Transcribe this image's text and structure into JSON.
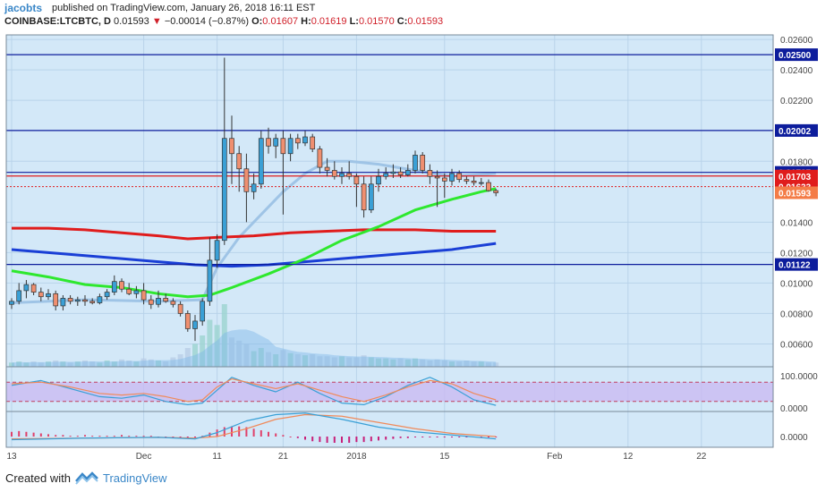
{
  "header": {
    "author": "jacobts",
    "published": "published on TradingView.com, January 26, 2018 16:11 EST",
    "symbol": "COINBASE:LTCBTC, D",
    "last": "0.01593",
    "change_arrow": "▼",
    "change": "−0.00014 (−0.87%)",
    "o_label": "O:",
    "o": "0.01607",
    "h_label": "H:",
    "h": "0.01619",
    "l_label": "L:",
    "l": "0.01570",
    "c_label": "C:",
    "c": "0.01593"
  },
  "footer": {
    "created": "Created with",
    "brand": "TradingView",
    "logo_icon": "tradingview-logo-icon"
  },
  "colors": {
    "panel_bg": "#d3e8f8",
    "grid": "#b9d3ea",
    "up": "#3aa0d6",
    "down": "#ef8f70",
    "ma_red": "#e01c1c",
    "ma_blue": "#1a3fd6",
    "ma_green": "#2ee82e",
    "bb": "#9fc4e6",
    "rsi_fill": "#c9b8f2"
  },
  "chart_data": {
    "type": "candlestick",
    "x_ticks": [
      "13",
      "Dec",
      "11",
      "21",
      "2018",
      "15",
      "Feb",
      "12",
      "22"
    ],
    "x_tick_idx": [
      0,
      18,
      28,
      37,
      47,
      59,
      74,
      84,
      94
    ],
    "y_ticks": [
      "0.02600",
      "0.02400",
      "0.02200",
      "0.01800",
      "0.01400",
      "0.01200",
      "0.01000",
      "0.00800",
      "0.00600"
    ],
    "y_range": [
      0.0045,
      0.0263
    ],
    "horizontal_lines": [
      {
        "value": 0.025,
        "label": "0.02500",
        "color": "#0d1d9c",
        "style": "solid"
      },
      {
        "value": 0.02002,
        "label": "0.02002",
        "color": "#0d1d9c",
        "style": "solid"
      },
      {
        "value": 0.01727,
        "label": "0.01727",
        "color": "#0d1d9c",
        "style": "solid"
      },
      {
        "value": 0.01703,
        "label": "0.01703",
        "color": "#e01c1c",
        "style": "solid"
      },
      {
        "value": 0.01633,
        "label": "0.01633",
        "color": "#e01c1c",
        "style": "dotted"
      },
      {
        "value": 0.01593,
        "label": "0.01593",
        "color": "#f47c47",
        "style": "price"
      },
      {
        "value": 0.01122,
        "label": "0.01122",
        "color": "#0d1d9c",
        "style": "solid"
      }
    ],
    "candles": [
      [
        0.0086,
        0.009,
        0.0083,
        0.0088
      ],
      [
        0.0088,
        0.01,
        0.0086,
        0.0095
      ],
      [
        0.0095,
        0.0102,
        0.009,
        0.0099
      ],
      [
        0.0099,
        0.01,
        0.0092,
        0.0094
      ],
      [
        0.0094,
        0.0097,
        0.0088,
        0.0091
      ],
      [
        0.0091,
        0.0096,
        0.0089,
        0.0093
      ],
      [
        0.0093,
        0.0095,
        0.0082,
        0.0085
      ],
      [
        0.0085,
        0.0092,
        0.0082,
        0.009
      ],
      [
        0.009,
        0.0092,
        0.0086,
        0.0088
      ],
      [
        0.0088,
        0.0091,
        0.0085,
        0.0089
      ],
      [
        0.0089,
        0.0092,
        0.0085,
        0.0088
      ],
      [
        0.0088,
        0.009,
        0.0086,
        0.0087
      ],
      [
        0.0087,
        0.0093,
        0.0086,
        0.0091
      ],
      [
        0.0091,
        0.0096,
        0.0089,
        0.0094
      ],
      [
        0.0094,
        0.0105,
        0.0092,
        0.0101
      ],
      [
        0.0101,
        0.0103,
        0.0094,
        0.0096
      ],
      [
        0.0096,
        0.01,
        0.0092,
        0.0093
      ],
      [
        0.0093,
        0.0098,
        0.009,
        0.0095
      ],
      [
        0.0095,
        0.01,
        0.0086,
        0.0089
      ],
      [
        0.0089,
        0.0092,
        0.0083,
        0.0086
      ],
      [
        0.0086,
        0.0095,
        0.0084,
        0.009
      ],
      [
        0.009,
        0.0093,
        0.0087,
        0.0088
      ],
      [
        0.0088,
        0.009,
        0.0084,
        0.0086
      ],
      [
        0.0086,
        0.0088,
        0.0078,
        0.008
      ],
      [
        0.008,
        0.0082,
        0.0068,
        0.007
      ],
      [
        0.007,
        0.0079,
        0.0062,
        0.0075
      ],
      [
        0.0075,
        0.009,
        0.0072,
        0.0088
      ],
      [
        0.0088,
        0.013,
        0.0085,
        0.0115
      ],
      [
        0.0115,
        0.0132,
        0.011,
        0.0128
      ],
      [
        0.0128,
        0.0248,
        0.0125,
        0.0195
      ],
      [
        0.0195,
        0.021,
        0.0165,
        0.0185
      ],
      [
        0.0185,
        0.019,
        0.016,
        0.0175
      ],
      [
        0.0175,
        0.0185,
        0.014,
        0.016
      ],
      [
        0.016,
        0.0172,
        0.0155,
        0.0165
      ],
      [
        0.0165,
        0.02,
        0.0162,
        0.0195
      ],
      [
        0.0195,
        0.0202,
        0.0185,
        0.019
      ],
      [
        0.019,
        0.0198,
        0.0182,
        0.0195
      ],
      [
        0.0195,
        0.02,
        0.0145,
        0.0185
      ],
      [
        0.0185,
        0.0198,
        0.018,
        0.0195
      ],
      [
        0.0195,
        0.0198,
        0.0188,
        0.0192
      ],
      [
        0.0192,
        0.02,
        0.019,
        0.0196
      ],
      [
        0.0196,
        0.0198,
        0.0186,
        0.0188
      ],
      [
        0.0188,
        0.019,
        0.0172,
        0.0176
      ],
      [
        0.0176,
        0.0182,
        0.017,
        0.0174
      ],
      [
        0.0174,
        0.018,
        0.0168,
        0.017
      ],
      [
        0.017,
        0.0176,
        0.0165,
        0.0172
      ],
      [
        0.0172,
        0.018,
        0.0168,
        0.017
      ],
      [
        0.017,
        0.0172,
        0.015,
        0.0165
      ],
      [
        0.0165,
        0.017,
        0.0143,
        0.0148
      ],
      [
        0.0148,
        0.017,
        0.0146,
        0.0165
      ],
      [
        0.0165,
        0.0175,
        0.016,
        0.017
      ],
      [
        0.017,
        0.0176,
        0.0168,
        0.0172
      ],
      [
        0.0172,
        0.0178,
        0.0169,
        0.0173
      ],
      [
        0.0173,
        0.0176,
        0.0169,
        0.0171
      ],
      [
        0.0171,
        0.0178,
        0.017,
        0.0174
      ],
      [
        0.0174,
        0.0187,
        0.0172,
        0.0184
      ],
      [
        0.0184,
        0.0186,
        0.0172,
        0.0174
      ],
      [
        0.0174,
        0.0178,
        0.0165,
        0.017
      ],
      [
        0.017,
        0.0174,
        0.015,
        0.0169
      ],
      [
        0.0169,
        0.0172,
        0.0156,
        0.0167
      ],
      [
        0.0167,
        0.0175,
        0.0164,
        0.0172
      ],
      [
        0.0172,
        0.0174,
        0.0166,
        0.0168
      ],
      [
        0.0168,
        0.017,
        0.0165,
        0.0167
      ],
      [
        0.0167,
        0.017,
        0.0164,
        0.0166
      ],
      [
        0.0166,
        0.0169,
        0.0164,
        0.0166
      ],
      [
        0.0166,
        0.0168,
        0.016,
        0.01607
      ],
      [
        0.01607,
        0.01619,
        0.0157,
        0.01593
      ]
    ],
    "ma_red": [
      [
        0,
        0.0136
      ],
      [
        5,
        0.0136
      ],
      [
        10,
        0.0135
      ],
      [
        15,
        0.0133
      ],
      [
        20,
        0.0131
      ],
      [
        24,
        0.0129
      ],
      [
        28,
        0.013
      ],
      [
        33,
        0.0131
      ],
      [
        38,
        0.0133
      ],
      [
        43,
        0.0134
      ],
      [
        48,
        0.0135
      ],
      [
        55,
        0.0135
      ],
      [
        60,
        0.0134
      ],
      [
        64,
        0.0134
      ],
      [
        66,
        0.0134
      ]
    ],
    "ma_blue": [
      [
        0,
        0.0122
      ],
      [
        5,
        0.012
      ],
      [
        10,
        0.0118
      ],
      [
        15,
        0.0116
      ],
      [
        20,
        0.0114
      ],
      [
        25,
        0.0112
      ],
      [
        30,
        0.0111
      ],
      [
        35,
        0.0112
      ],
      [
        40,
        0.0114
      ],
      [
        45,
        0.0116
      ],
      [
        50,
        0.0118
      ],
      [
        55,
        0.012
      ],
      [
        60,
        0.0122
      ],
      [
        66,
        0.0126
      ]
    ],
    "ma_green": [
      [
        0,
        0.0108
      ],
      [
        5,
        0.0104
      ],
      [
        10,
        0.0099
      ],
      [
        15,
        0.0097
      ],
      [
        20,
        0.0093
      ],
      [
        24,
        0.0091
      ],
      [
        27,
        0.0092
      ],
      [
        30,
        0.0097
      ],
      [
        35,
        0.0106
      ],
      [
        40,
        0.0116
      ],
      [
        45,
        0.0128
      ],
      [
        50,
        0.0137
      ],
      [
        55,
        0.0148
      ],
      [
        60,
        0.0155
      ],
      [
        64,
        0.016
      ],
      [
        66,
        0.0162
      ]
    ],
    "bb_line": [
      [
        0,
        0.0087
      ],
      [
        10,
        0.0089
      ],
      [
        20,
        0.0088
      ],
      [
        26,
        0.0089
      ],
      [
        28,
        0.011
      ],
      [
        31,
        0.013
      ],
      [
        34,
        0.0145
      ],
      [
        37,
        0.016
      ],
      [
        40,
        0.0172
      ],
      [
        43,
        0.018
      ],
      [
        46,
        0.018
      ],
      [
        50,
        0.0178
      ],
      [
        55,
        0.0174
      ],
      [
        60,
        0.017
      ],
      [
        66,
        0.0172
      ]
    ],
    "volume": [
      4,
      5,
      4,
      5,
      4,
      5,
      6,
      5,
      4,
      5,
      6,
      5,
      4,
      6,
      5,
      7,
      6,
      5,
      8,
      7,
      6,
      5,
      9,
      12,
      18,
      22,
      30,
      45,
      40,
      60,
      28,
      25,
      22,
      15,
      18,
      14,
      12,
      16,
      13,
      12,
      11,
      12,
      10,
      10,
      9,
      10,
      9,
      9,
      11,
      9,
      8,
      8,
      7,
      8,
      7,
      8,
      7,
      6,
      7,
      6,
      5,
      5,
      6,
      5,
      5,
      4,
      4
    ],
    "rsi": [
      [
        0,
        75
      ],
      [
        4,
        80
      ],
      [
        8,
        65
      ],
      [
        12,
        45
      ],
      [
        15,
        40
      ],
      [
        18,
        45
      ],
      [
        21,
        35
      ],
      [
        24,
        20
      ],
      [
        26,
        25
      ],
      [
        28,
        65
      ],
      [
        30,
        90
      ],
      [
        33,
        75
      ],
      [
        36,
        60
      ],
      [
        39,
        75
      ],
      [
        42,
        55
      ],
      [
        45,
        35
      ],
      [
        48,
        20
      ],
      [
        51,
        40
      ],
      [
        54,
        65
      ],
      [
        57,
        85
      ],
      [
        60,
        75
      ],
      [
        63,
        45
      ],
      [
        66,
        25
      ]
    ],
    "stoch": [
      [
        0,
        70
      ],
      [
        4,
        85
      ],
      [
        8,
        60
      ],
      [
        12,
        35
      ],
      [
        15,
        30
      ],
      [
        18,
        40
      ],
      [
        21,
        20
      ],
      [
        24,
        10
      ],
      [
        26,
        15
      ],
      [
        28,
        55
      ],
      [
        30,
        95
      ],
      [
        33,
        70
      ],
      [
        36,
        50
      ],
      [
        39,
        80
      ],
      [
        42,
        45
      ],
      [
        45,
        15
      ],
      [
        48,
        10
      ],
      [
        51,
        35
      ],
      [
        54,
        70
      ],
      [
        57,
        95
      ],
      [
        60,
        65
      ],
      [
        63,
        25
      ],
      [
        66,
        8
      ]
    ],
    "rsi_ticks": [
      "100.0000",
      "0.0000"
    ],
    "macd_tick": "0.0000",
    "macd_line": [
      [
        0,
        -0.0004
      ],
      [
        10,
        -0.0002
      ],
      [
        20,
        -0.0001
      ],
      [
        25,
        -0.0003
      ],
      [
        28,
        0.0005
      ],
      [
        32,
        0.002
      ],
      [
        36,
        0.0028
      ],
      [
        40,
        0.003
      ],
      [
        45,
        0.0022
      ],
      [
        50,
        0.0012
      ],
      [
        55,
        0.0006
      ],
      [
        60,
        0.0002
      ],
      [
        66,
        -0.0003
      ]
    ],
    "signal_line": [
      [
        0,
        -0.0003
      ],
      [
        10,
        -0.0002
      ],
      [
        20,
        -0.0001
      ],
      [
        25,
        -0.0002
      ],
      [
        28,
        0.0
      ],
      [
        32,
        0.001
      ],
      [
        36,
        0.0022
      ],
      [
        40,
        0.0028
      ],
      [
        45,
        0.0026
      ],
      [
        50,
        0.0018
      ],
      [
        55,
        0.001
      ],
      [
        60,
        0.0004
      ],
      [
        66,
        0.0
      ]
    ],
    "macd_hist": [
      0.0006,
      0.0007,
      0.0006,
      0.0005,
      0.0004,
      0.0003,
      0.0002,
      0.0002,
      0.0001,
      0.0001,
      0.0002,
      0.0001,
      0.0001,
      0.0001,
      0.0001,
      0.0002,
      0.0001,
      0.0001,
      0.0001,
      0.0001,
      -0.0001,
      -0.0001,
      -0.0002,
      -0.0002,
      -0.0002,
      -0.0001,
      0.0001,
      0.0005,
      0.0009,
      0.0012,
      0.0013,
      0.0013,
      0.0012,
      0.001,
      0.0008,
      0.0006,
      0.0004,
      0.0002,
      0.0,
      -0.0002,
      -0.0004,
      -0.0006,
      -0.0007,
      -0.0008,
      -0.0008,
      -0.0008,
      -0.0008,
      -0.0007,
      -0.0007,
      -0.0006,
      -0.0005,
      -0.0004,
      -0.0003,
      -0.0002,
      -0.0002,
      -0.0001,
      -0.0001,
      -0.0001,
      -0.0001,
      -0.0001,
      -0.0001,
      -0.0001,
      -0.0001,
      -0.0001,
      -0.0001,
      -0.0001,
      -0.0001
    ]
  }
}
